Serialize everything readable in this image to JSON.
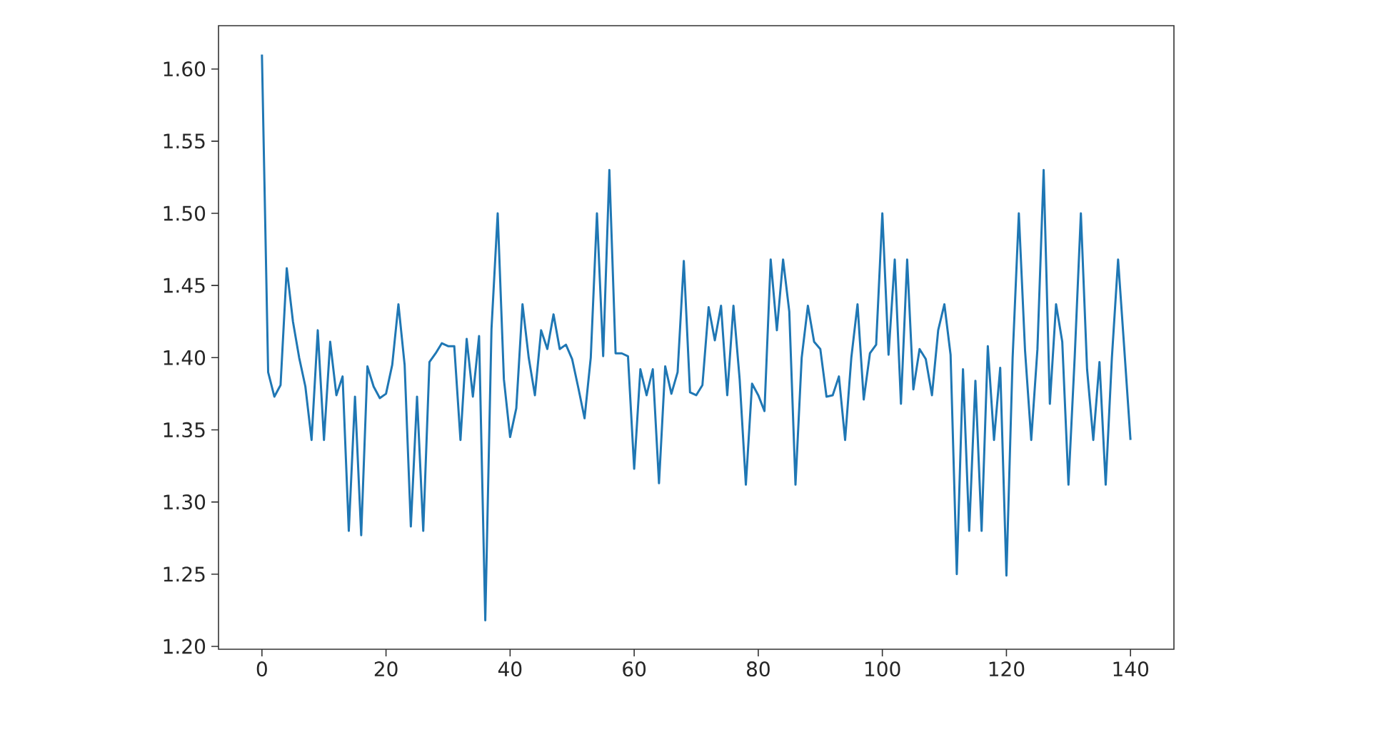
{
  "chart_data": {
    "type": "line",
    "x": [
      0,
      1,
      2,
      3,
      4,
      5,
      6,
      7,
      8,
      9,
      10,
      11,
      12,
      13,
      14,
      15,
      16,
      17,
      18,
      19,
      20,
      21,
      22,
      23,
      24,
      25,
      26,
      27,
      28,
      29,
      30,
      31,
      32,
      33,
      34,
      35,
      36,
      37,
      38,
      39,
      40,
      41,
      42,
      43,
      44,
      45,
      46,
      47,
      48,
      49,
      50,
      51,
      52,
      53,
      54,
      55,
      56,
      57,
      58,
      59,
      60,
      61,
      62,
      63,
      64,
      65,
      66,
      67,
      68,
      69,
      70,
      71,
      72,
      73,
      74,
      75,
      76,
      77,
      78,
      79,
      80,
      81,
      82,
      83,
      84,
      85,
      86,
      87,
      88,
      89,
      90,
      91,
      92,
      93,
      94,
      95,
      96,
      97,
      98,
      99,
      100,
      101,
      102,
      103,
      104,
      105,
      106,
      107,
      108,
      109,
      110,
      111,
      112,
      113,
      114,
      115,
      116,
      117,
      118,
      119,
      120,
      121,
      122,
      123,
      124,
      125,
      126,
      127,
      128,
      129,
      130,
      131,
      132,
      133,
      134,
      135,
      136,
      137,
      138,
      139,
      140
    ],
    "series": [
      {
        "color": "#1f77b4",
        "values": [
          1.61,
          1.39,
          1.373,
          1.381,
          1.462,
          1.425,
          1.4,
          1.38,
          1.343,
          1.419,
          1.343,
          1.411,
          1.374,
          1.387,
          1.28,
          1.373,
          1.277,
          1.394,
          1.38,
          1.372,
          1.375,
          1.395,
          1.437,
          1.395,
          1.283,
          1.373,
          1.28,
          1.397,
          1.403,
          1.41,
          1.408,
          1.408,
          1.343,
          1.413,
          1.373,
          1.415,
          1.218,
          1.42,
          1.5,
          1.385,
          1.345,
          1.365,
          1.437,
          1.4,
          1.374,
          1.419,
          1.406,
          1.43,
          1.406,
          1.409,
          1.399,
          1.379,
          1.358,
          1.4,
          1.5,
          1.401,
          1.53,
          1.403,
          1.403,
          1.401,
          1.323,
          1.392,
          1.374,
          1.392,
          1.313,
          1.394,
          1.375,
          1.39,
          1.467,
          1.376,
          1.374,
          1.381,
          1.435,
          1.412,
          1.436,
          1.374,
          1.436,
          1.385,
          1.312,
          1.382,
          1.374,
          1.363,
          1.468,
          1.419,
          1.468,
          1.432,
          1.312,
          1.4,
          1.436,
          1.411,
          1.406,
          1.373,
          1.374,
          1.387,
          1.343,
          1.4,
          1.437,
          1.371,
          1.403,
          1.409,
          1.5,
          1.402,
          1.468,
          1.368,
          1.468,
          1.378,
          1.406,
          1.399,
          1.374,
          1.419,
          1.437,
          1.402,
          1.25,
          1.392,
          1.28,
          1.384,
          1.28,
          1.408,
          1.343,
          1.393,
          1.249,
          1.4,
          1.5,
          1.405,
          1.343,
          1.406,
          1.53,
          1.368,
          1.437,
          1.411,
          1.312,
          1.4,
          1.5,
          1.392,
          1.343,
          1.397,
          1.312,
          1.4,
          1.468,
          1.406,
          1.343
        ]
      }
    ],
    "xlim": [
      -7,
      147
    ],
    "ylim": [
      1.198,
      1.63
    ],
    "xticks": [
      0,
      20,
      40,
      60,
      80,
      100,
      120,
      140
    ],
    "yticks": [
      {
        "value": 1.2,
        "label": "1.20"
      },
      {
        "value": 1.25,
        "label": "1.25"
      },
      {
        "value": 1.3,
        "label": "1.30"
      },
      {
        "value": 1.35,
        "label": "1.35"
      },
      {
        "value": 1.4,
        "label": "1.40"
      },
      {
        "value": 1.45,
        "label": "1.45"
      },
      {
        "value": 1.5,
        "label": "1.50"
      },
      {
        "value": 1.55,
        "label": "1.55"
      },
      {
        "value": 1.6,
        "label": "1.60"
      }
    ]
  }
}
